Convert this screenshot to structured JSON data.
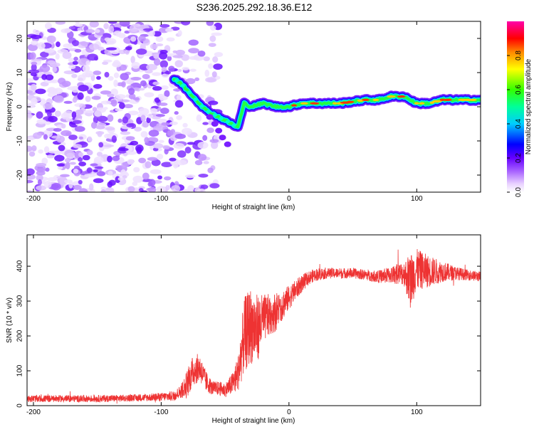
{
  "title": "S236.2025.292.18.36.E12",
  "chart_data": [
    {
      "type": "heatmap",
      "xlabel": "Height of straight line (km)",
      "ylabel": "Frequency (Hz)",
      "xlim": [
        -205,
        150
      ],
      "ylim": [
        -25,
        25
      ],
      "x_ticks": [
        -200,
        -100,
        0,
        100
      ],
      "y_ticks": [
        -20,
        -10,
        0,
        10,
        20
      ],
      "colorbar": {
        "label": "Normalized spectral amplitude",
        "range": [
          0,
          1
        ],
        "ticks": [
          0.0,
          0.2,
          0.4,
          0.6,
          0.8
        ],
        "colors": [
          "#ffffff",
          "#cc88ff",
          "#7700ff",
          "#0000ff",
          "#00ffff",
          "#00ff00",
          "#ffff00",
          "#ff8800",
          "#ff0000",
          "#ff00aa"
        ]
      },
      "ridge": {
        "name": "dominant frequency",
        "x": [
          -90,
          -85,
          -80,
          -75,
          -70,
          -65,
          -60,
          -55,
          -50,
          -45,
          -40,
          -35,
          -30,
          -20,
          -10,
          0,
          10,
          20,
          40,
          60,
          70,
          80,
          90,
          95,
          100,
          110,
          120,
          130,
          140,
          150
        ],
        "y": [
          8,
          7,
          5,
          3,
          1,
          -1,
          -2,
          -3,
          -4,
          -5,
          -6,
          1,
          0,
          1,
          0,
          0,
          1,
          1,
          1,
          2,
          2,
          3,
          3,
          2,
          1,
          1,
          2,
          2,
          2,
          2
        ]
      },
      "noise_region_x": [
        -205,
        -85
      ]
    },
    {
      "type": "line",
      "xlabel": "Height of straight line (km)",
      "ylabel": "SNR (10 * v/v)",
      "xlim": [
        -205,
        150
      ],
      "ylim": [
        0,
        490
      ],
      "x_ticks": [
        -200,
        -100,
        0,
        100
      ],
      "y_ticks": [
        0,
        100,
        200,
        300,
        400
      ],
      "series": [
        {
          "name": "SNR",
          "color": "#ee3333",
          "x": [
            -205,
            -180,
            -150,
            -120,
            -100,
            -90,
            -85,
            -80,
            -75,
            -70,
            -65,
            -60,
            -55,
            -50,
            -45,
            -40,
            -35,
            -30,
            -25,
            -20,
            -15,
            -10,
            -5,
            0,
            5,
            10,
            15,
            20,
            25,
            30,
            40,
            50,
            60,
            70,
            80,
            90,
            95,
            100,
            110,
            120,
            130,
            140,
            150
          ],
          "values": [
            20,
            20,
            20,
            22,
            25,
            28,
            40,
            60,
            100,
            110,
            70,
            50,
            50,
            45,
            60,
            90,
            200,
            230,
            220,
            250,
            260,
            270,
            290,
            310,
            330,
            350,
            365,
            375,
            378,
            380,
            380,
            380,
            375,
            370,
            375,
            380,
            360,
            390,
            385,
            385,
            380,
            375,
            370
          ],
          "noise_amplitude": [
            10,
            10,
            10,
            10,
            12,
            15,
            18,
            40,
            45,
            40,
            30,
            20,
            20,
            20,
            30,
            50,
            110,
            110,
            100,
            70,
            60,
            55,
            45,
            35,
            30,
            25,
            20,
            18,
            18,
            15,
            15,
            15,
            15,
            18,
            25,
            35,
            80,
            60,
            45,
            30,
            20,
            15,
            15
          ]
        }
      ]
    }
  ]
}
